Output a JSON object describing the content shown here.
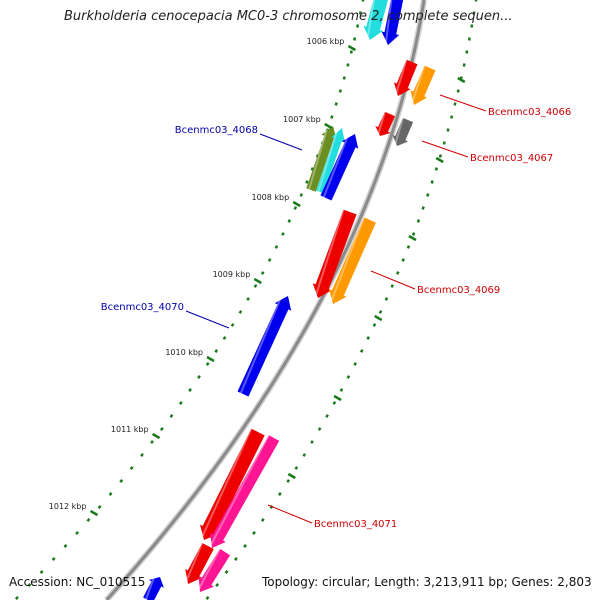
{
  "title": "Burkholderia cenocepacia MC0-3 chromosome 2, complete sequen...",
  "footer": {
    "accession": "Accession: NC_010515",
    "summary": "Topology: circular; Length: 3,213,911 bp; Genes: 2,803"
  },
  "ticks": [
    "1006 kbp",
    "1007 kbp",
    "1008 kbp",
    "1009 kbp",
    "1010 kbp",
    "1011 kbp",
    "1012 kbp"
  ],
  "colors": {
    "backbone": "#8a8a8a",
    "tick": "#1a7a1a",
    "label_plus": "#cc0000",
    "label_minus": "#0000aa",
    "blue": "#0000ee",
    "red": "#ee0000",
    "orange": "#ff9900",
    "cyan": "#22dddd",
    "olive": "#6b8e23",
    "gray": "#666666",
    "pink": "#ff1493"
  },
  "gene_labels": [
    {
      "id": "Bcenmc03_4066",
      "text": "Bcenmc03_4066",
      "strand": "plus"
    },
    {
      "id": "Bcenmc03_4067",
      "text": "Bcenmc03_4067",
      "strand": "plus"
    },
    {
      "id": "Bcenmc03_4068",
      "text": "Bcenmc03_4068",
      "strand": "minus"
    },
    {
      "id": "Bcenmc03_4069",
      "text": "Bcenmc03_4069",
      "strand": "plus"
    },
    {
      "id": "Bcenmc03_4070",
      "text": "Bcenmc03_4070",
      "strand": "minus"
    },
    {
      "id": "Bcenmc03_4071",
      "text": "Bcenmc03_4071",
      "strand": "plus"
    }
  ]
}
